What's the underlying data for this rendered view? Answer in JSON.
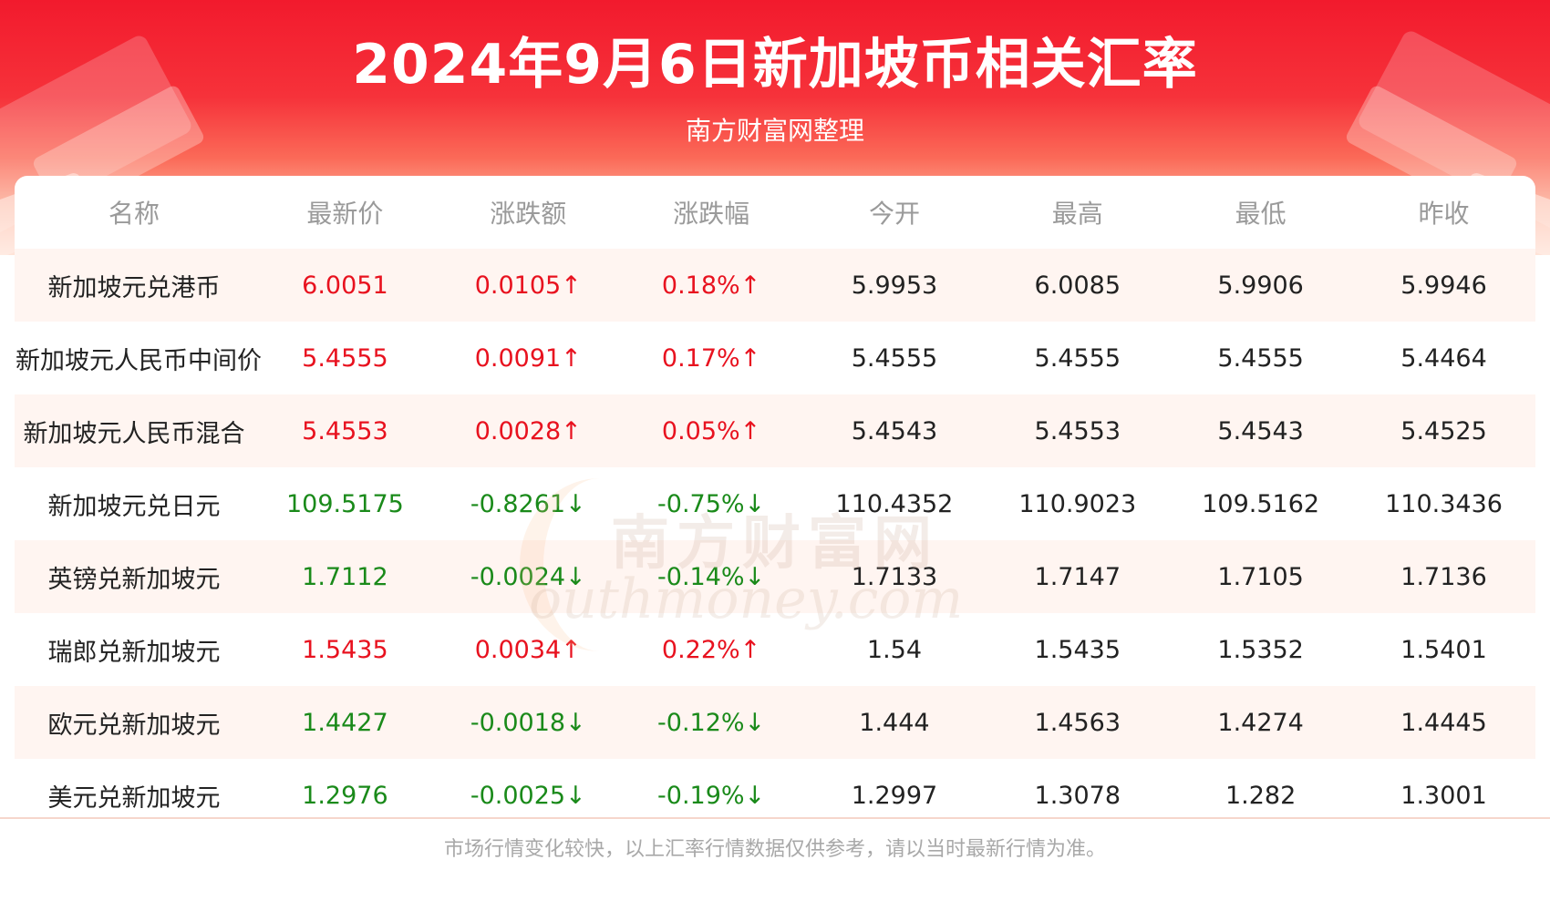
{
  "title": "2024年9月6日新加坡币相关汇率",
  "subtitle": "南方财富网整理",
  "watermark": {
    "cn": "南方财富网",
    "en": "outhmoney.com"
  },
  "colors": {
    "up": "#e8121f",
    "down": "#1a8a1a",
    "header_red": "#f21a2d"
  },
  "table": {
    "headers": [
      "名称",
      "最新价",
      "涨跌额",
      "涨跌幅",
      "今开",
      "最高",
      "最低",
      "昨收"
    ],
    "rows": [
      {
        "name": "新加坡元兑港币",
        "latest": "6.0051",
        "change": "0.0105↑",
        "pct": "0.18%↑",
        "open": "5.9953",
        "high": "6.0085",
        "low": "5.9906",
        "prev": "5.9946",
        "dir": "up"
      },
      {
        "name": "新加坡元人民币中间价",
        "latest": "5.4555",
        "change": "0.0091↑",
        "pct": "0.17%↑",
        "open": "5.4555",
        "high": "5.4555",
        "low": "5.4555",
        "prev": "5.4464",
        "dir": "up"
      },
      {
        "name": "新加坡元人民币混合",
        "latest": "5.4553",
        "change": "0.0028↑",
        "pct": "0.05%↑",
        "open": "5.4543",
        "high": "5.4553",
        "low": "5.4543",
        "prev": "5.4525",
        "dir": "up"
      },
      {
        "name": "新加坡元兑日元",
        "latest": "109.5175",
        "change": "-0.8261↓",
        "pct": "-0.75%↓",
        "open": "110.4352",
        "high": "110.9023",
        "low": "109.5162",
        "prev": "110.3436",
        "dir": "down"
      },
      {
        "name": "英镑兑新加坡元",
        "latest": "1.7112",
        "change": "-0.0024↓",
        "pct": "-0.14%↓",
        "open": "1.7133",
        "high": "1.7147",
        "low": "1.7105",
        "prev": "1.7136",
        "dir": "down"
      },
      {
        "name": "瑞郎兑新加坡元",
        "latest": "1.5435",
        "change": "0.0034↑",
        "pct": "0.22%↑",
        "open": "1.54",
        "high": "1.5435",
        "low": "1.5352",
        "prev": "1.5401",
        "dir": "up"
      },
      {
        "name": "欧元兑新加坡元",
        "latest": "1.4427",
        "change": "-0.0018↓",
        "pct": "-0.12%↓",
        "open": "1.444",
        "high": "1.4563",
        "low": "1.4274",
        "prev": "1.4445",
        "dir": "down"
      },
      {
        "name": "美元兑新加坡元",
        "latest": "1.2976",
        "change": "-0.0025↓",
        "pct": "-0.19%↓",
        "open": "1.2997",
        "high": "1.3078",
        "low": "1.282",
        "prev": "1.3001",
        "dir": "down"
      }
    ]
  },
  "footer": "市场行情变化较快，以上汇率行情数据仅供参考，请以当时最新行情为准。"
}
